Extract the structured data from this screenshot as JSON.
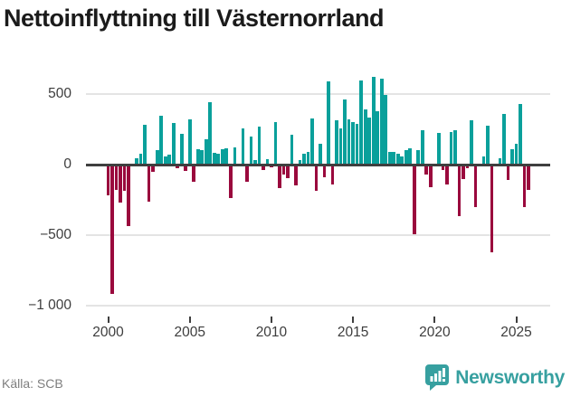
{
  "title": "Nettoinflyttning till Västernorrland",
  "source": "Källa: SCB",
  "logo": {
    "text": "Newsworthy",
    "icon": "newsworthy-badge-icon"
  },
  "colors": {
    "positive_bar": "#0aa09b",
    "negative_bar": "#9a093d",
    "zero_line": "#3f3f3f",
    "gridline": "#e4e4e4",
    "axis_text": "#3d3d3d",
    "title_text": "#1b1b1b",
    "source_text": "#7e7e7e",
    "brand_teal": "#37a0a0"
  },
  "chart_data": {
    "type": "bar",
    "title": "Nettoinflyttning till Västernorrland",
    "start": "2000-Q1",
    "frequency": "quarterly",
    "values": [
      -220,
      -920,
      -180,
      -270,
      -185,
      -435,
      5,
      45,
      75,
      280,
      -265,
      -50,
      103,
      348,
      56,
      71,
      293,
      -27,
      219,
      -48,
      320,
      -122,
      110,
      105,
      177,
      443,
      86,
      78,
      110,
      115,
      -240,
      125,
      -15,
      255,
      -120,
      198,
      30,
      272,
      -38,
      36,
      -21,
      304,
      -165,
      -70,
      -97,
      211,
      -150,
      30,
      78,
      93,
      325,
      -186,
      148,
      -91,
      589,
      -139,
      316,
      257,
      462,
      320,
      299,
      288,
      600,
      394,
      335,
      621,
      377,
      613,
      494,
      93,
      87,
      80,
      55,
      104,
      117,
      -498,
      106,
      242,
      -70,
      -159,
      0,
      227,
      -38,
      -140,
      231,
      242,
      -367,
      -102,
      -28,
      312,
      -303,
      0,
      57,
      274,
      -626,
      0,
      45,
      363,
      -112,
      112,
      146,
      430,
      -300,
      -180
    ],
    "x_ticks": [
      {
        "year": 2000,
        "label": "2000"
      },
      {
        "year": 2005,
        "label": "2005"
      },
      {
        "year": 2010,
        "label": "2010"
      },
      {
        "year": 2015,
        "label": "2015"
      },
      {
        "year": 2020,
        "label": "2020"
      },
      {
        "year": 2025,
        "label": "2025"
      }
    ],
    "y_ticks": [
      {
        "value": 500,
        "label": "500"
      },
      {
        "value": 0,
        "label": "0"
      },
      {
        "value": -500,
        "label": "−500"
      },
      {
        "value": -1000,
        "label": "−1 000"
      }
    ],
    "ylim": [
      -1000,
      690
    ],
    "grid": "horizontal",
    "legend": "none"
  }
}
